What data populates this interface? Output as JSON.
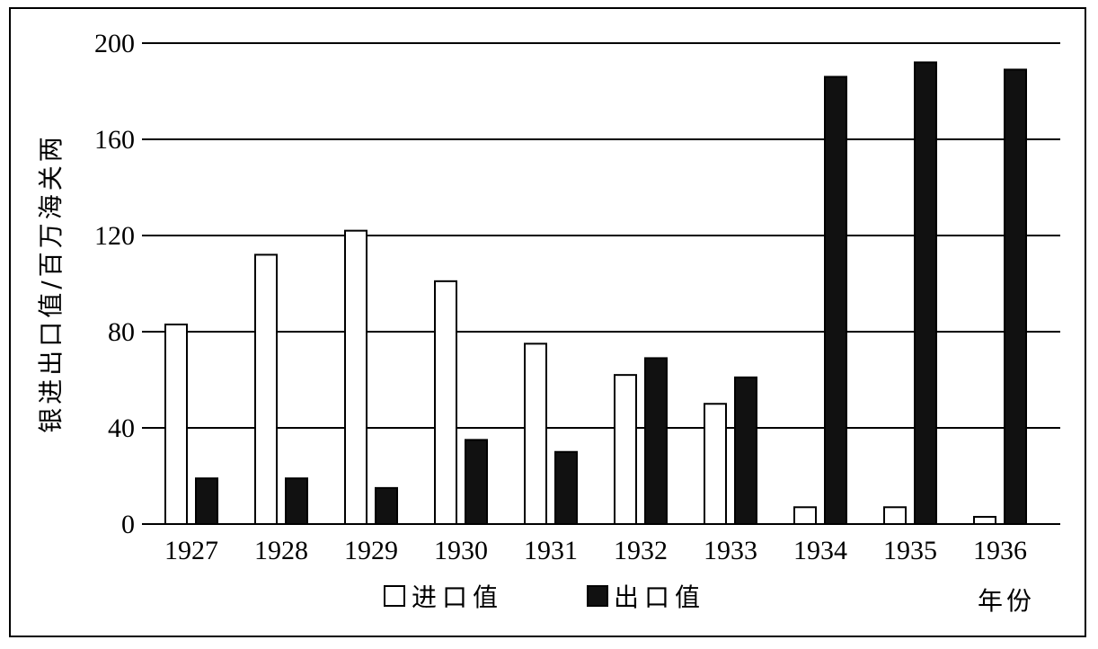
{
  "chart_data": {
    "type": "bar",
    "categories": [
      "1927",
      "1928",
      "1929",
      "1930",
      "1931",
      "1932",
      "1933",
      "1934",
      "1935",
      "1936"
    ],
    "series": [
      {
        "name": "进口值",
        "values": [
          83,
          112,
          122,
          101,
          75,
          62,
          50,
          7,
          7,
          3
        ],
        "color": "#ffffff"
      },
      {
        "name": "出口值",
        "values": [
          19,
          19,
          15,
          35,
          30,
          69,
          61,
          186,
          192,
          189
        ],
        "color": "#111111"
      }
    ],
    "title": "",
    "xlabel": "年份",
    "ylabel": "银进出口值/百万海关两",
    "ylim": [
      0,
      200
    ],
    "yticks": [
      0,
      40,
      80,
      120,
      160,
      200
    ],
    "grid": true,
    "legend_position": "bottom-center"
  }
}
